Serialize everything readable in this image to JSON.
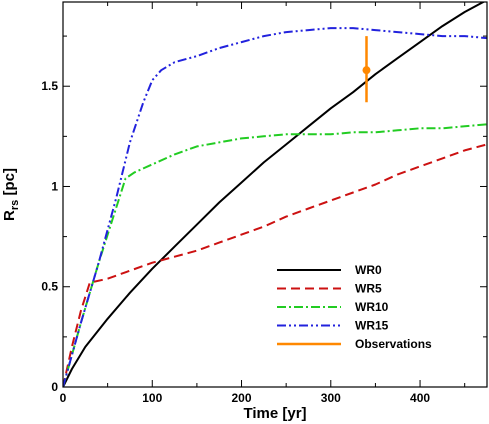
{
  "chart_data": {
    "type": "line",
    "xlabel": "Time [yr]",
    "ylabel_main": "R",
    "ylabel_sub": "rs",
    "ylabel_unit": " [pc]",
    "xlim": [
      0,
      475
    ],
    "ylim": [
      0,
      1.92
    ],
    "xticks": [
      0,
      100,
      200,
      300,
      400
    ],
    "xtick_labels": [
      "0",
      "100",
      "200",
      "300",
      "400"
    ],
    "yticks": [
      0,
      0.5,
      1,
      1.5
    ],
    "ytick_labels": [
      "0",
      "0.5",
      "1",
      "1.5"
    ],
    "grid": false,
    "legend_position": "bottom-right",
    "series": [
      {
        "name": "WR0",
        "color": "#000000",
        "dash": "solid",
        "x": [
          0,
          10,
          25,
          50,
          75,
          100,
          125,
          150,
          175,
          200,
          225,
          250,
          275,
          300,
          325,
          350,
          375,
          400,
          425,
          450,
          475
        ],
        "y": [
          0,
          0.09,
          0.2,
          0.34,
          0.47,
          0.59,
          0.7,
          0.81,
          0.92,
          1.02,
          1.12,
          1.21,
          1.3,
          1.39,
          1.47,
          1.56,
          1.64,
          1.72,
          1.8,
          1.87,
          1.93
        ]
      },
      {
        "name": "WR5",
        "color": "#cc1111",
        "dash": "dashed",
        "x": [
          0,
          10,
          20,
          30,
          50,
          75,
          100,
          125,
          150,
          175,
          200,
          225,
          250,
          275,
          300,
          325,
          350,
          375,
          400,
          425,
          450,
          475
        ],
        "y": [
          0,
          0.2,
          0.38,
          0.52,
          0.54,
          0.58,
          0.62,
          0.65,
          0.68,
          0.72,
          0.76,
          0.8,
          0.85,
          0.89,
          0.93,
          0.97,
          1.01,
          1.06,
          1.1,
          1.14,
          1.18,
          1.21
        ]
      },
      {
        "name": "WR10",
        "color": "#22cc22",
        "dash": "dashdot",
        "x": [
          0,
          20,
          40,
          60,
          70,
          80,
          100,
          125,
          150,
          175,
          200,
          225,
          250,
          275,
          300,
          325,
          350,
          375,
          400,
          425,
          450,
          475
        ],
        "y": [
          0,
          0.32,
          0.62,
          0.9,
          1.04,
          1.07,
          1.11,
          1.16,
          1.2,
          1.22,
          1.24,
          1.25,
          1.26,
          1.26,
          1.26,
          1.27,
          1.27,
          1.28,
          1.29,
          1.29,
          1.3,
          1.31
        ]
      },
      {
        "name": "WR15",
        "color": "#2222dd",
        "dash": "dashdotdot",
        "x": [
          0,
          20,
          40,
          60,
          75,
          90,
          100,
          110,
          125,
          150,
          175,
          200,
          225,
          250,
          275,
          300,
          325,
          350,
          375,
          400,
          425,
          450,
          475
        ],
        "y": [
          0,
          0.32,
          0.62,
          0.95,
          1.22,
          1.42,
          1.53,
          1.58,
          1.62,
          1.65,
          1.69,
          1.72,
          1.75,
          1.77,
          1.78,
          1.79,
          1.79,
          1.78,
          1.77,
          1.76,
          1.75,
          1.75,
          1.74
        ]
      }
    ],
    "observations": {
      "name": "Observations",
      "color": "#ff8800",
      "x": 340,
      "y": 1.58,
      "y_low": 1.42,
      "y_high": 1.75
    }
  }
}
